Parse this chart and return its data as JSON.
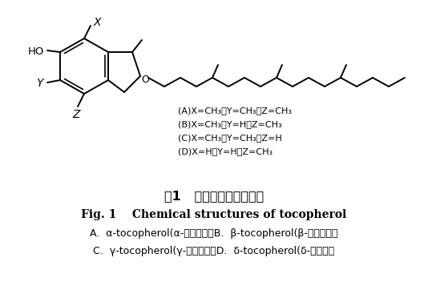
{
  "title_zh": "图1   生育酚的化学结构式",
  "title_en": "Fig. 1    Chemical structures of tocopherol",
  "caption_line1": "A.  α-tocopherol(α-生育酚），B.  β-tocopherol(β-生育酚），",
  "caption_line2": "C.  γ-tocopherol(γ-生育酚），D.  δ-tocopherol(δ-生育酚）",
  "legend_A": "(A)X=CH₃，Y=CH₃，Z=CH₃",
  "legend_B": "(B)X=CH₃，Y=H，Z=CH₃",
  "legend_C": "(C)X=CH₃，Y=CH₃，Z=H",
  "legend_D": "(D)X=H，Y=H，Z=CH₃",
  "bg_color": "#ffffff",
  "line_color": "#000000",
  "text_color": "#000000"
}
